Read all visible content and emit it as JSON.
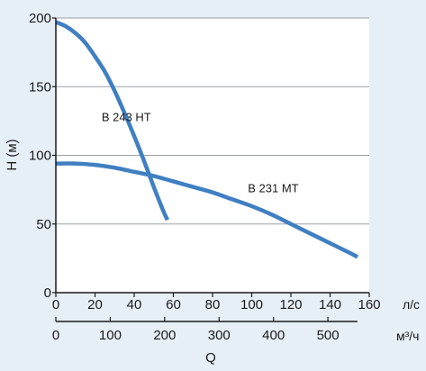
{
  "chart_data": {
    "type": "line",
    "xlabel": "Q",
    "ylabel": "H (м)",
    "x_unit": "л/с",
    "x2_unit": "м³/ч",
    "xlim": [
      0,
      160
    ],
    "ylim": [
      0,
      200
    ],
    "x_ticks": [
      0,
      20,
      40,
      60,
      80,
      100,
      120,
      140,
      160
    ],
    "y_ticks": [
      0,
      50,
      100,
      150,
      200
    ],
    "x2_ticks": [
      0,
      100,
      200,
      300,
      400,
      500
    ],
    "x2_factor": 3.6,
    "grid": "horizontal",
    "colors": {
      "line": "#3f7fc2",
      "background": "#e6eef6",
      "plot_area": "#ffffff",
      "grid": "#9aa0a6"
    },
    "series": [
      {
        "name": "B 243 HT",
        "x": [
          0,
          5,
          10,
          15,
          20,
          25,
          30,
          35,
          40,
          45,
          50,
          55,
          57
        ],
        "y": [
          197,
          194,
          189,
          182,
          172,
          161,
          147,
          131,
          114,
          96,
          77,
          59,
          53
        ]
      },
      {
        "name": "B 231 MT",
        "x": [
          0,
          10,
          20,
          30,
          40,
          50,
          60,
          70,
          80,
          90,
          100,
          110,
          120,
          130,
          140,
          150,
          154
        ],
        "y": [
          94,
          94,
          93,
          91,
          88,
          85,
          81,
          77,
          73,
          68,
          63,
          57,
          50,
          43,
          36,
          29,
          26
        ]
      }
    ]
  }
}
